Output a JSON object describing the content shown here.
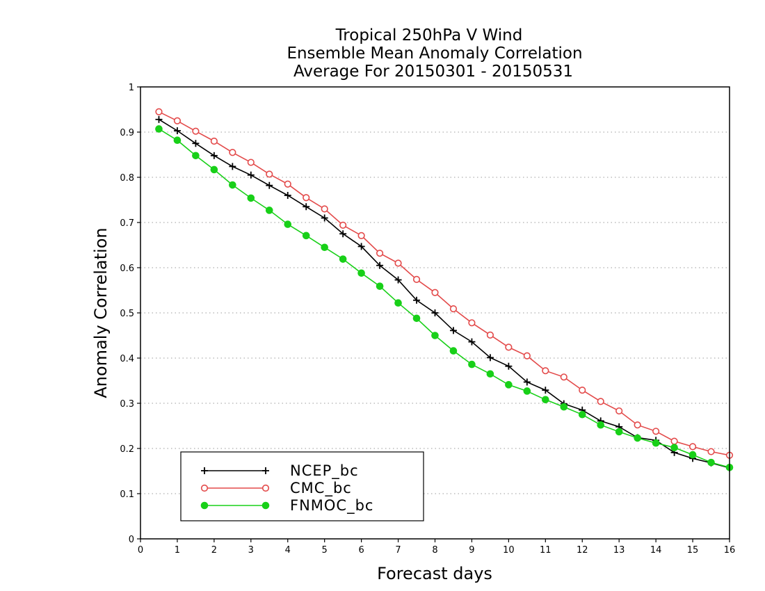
{
  "chart_data": {
    "type": "line",
    "title": [
      "Tropical 250hPa V Wind",
      "Ensemble Mean Anomaly Correlation",
      "Average For 20150301 - 20150531"
    ],
    "xlabel": "Forecast days",
    "ylabel": "Anomaly Correlation",
    "xlim": [
      0,
      16
    ],
    "ylim": [
      0,
      1
    ],
    "xticks": [
      0,
      1,
      2,
      3,
      4,
      5,
      6,
      7,
      8,
      9,
      10,
      11,
      12,
      13,
      14,
      15,
      16
    ],
    "yticks": [
      0,
      0.1,
      0.2,
      0.3,
      0.4,
      0.5,
      0.6,
      0.7,
      0.8,
      0.9,
      1
    ],
    "ytick_labels": [
      "0",
      "0.1",
      "0.2",
      "0.3",
      "0.4",
      "0.5",
      "0.6",
      "0.7",
      "0.8",
      "0.9",
      "1"
    ],
    "grid": "horizontal-dotted",
    "legend_position": "bottom-left",
    "x": [
      0.5,
      1,
      1.5,
      2,
      2.5,
      3,
      3.5,
      4,
      4.5,
      5,
      5.5,
      6,
      6.5,
      7,
      7.5,
      8,
      8.5,
      9,
      9.5,
      10,
      10.5,
      11,
      11.5,
      12,
      12.5,
      13,
      13.5,
      14,
      14.5,
      15,
      15.5,
      16
    ],
    "series": [
      {
        "name": "NCEP_bc",
        "color": "#000000",
        "marker": "plus",
        "values": [
          0.928,
          0.903,
          0.875,
          0.848,
          0.824,
          0.805,
          0.782,
          0.76,
          0.735,
          0.71,
          0.675,
          0.647,
          0.605,
          0.573,
          0.528,
          0.5,
          0.461,
          0.436,
          0.401,
          0.382,
          0.347,
          0.329,
          0.299,
          0.285,
          0.261,
          0.248,
          0.224,
          0.218,
          0.191,
          0.178,
          0.168,
          0.157
        ]
      },
      {
        "name": "CMC_bc",
        "color": "#e34a4a",
        "marker": "open-circle",
        "values": [
          0.945,
          0.925,
          0.902,
          0.88,
          0.855,
          0.833,
          0.807,
          0.785,
          0.755,
          0.73,
          0.694,
          0.671,
          0.632,
          0.61,
          0.574,
          0.545,
          0.509,
          0.478,
          0.451,
          0.424,
          0.405,
          0.372,
          0.358,
          0.329,
          0.304,
          0.283,
          0.252,
          0.238,
          0.216,
          0.204,
          0.193,
          0.185
        ]
      },
      {
        "name": "FNMOC_bc",
        "color": "#18d018",
        "marker": "filled-circle",
        "values": [
          0.907,
          0.882,
          0.848,
          0.817,
          0.783,
          0.754,
          0.727,
          0.696,
          0.671,
          0.645,
          0.619,
          0.588,
          0.559,
          0.522,
          0.488,
          0.45,
          0.416,
          0.386,
          0.365,
          0.341,
          0.327,
          0.308,
          0.292,
          0.275,
          0.252,
          0.237,
          0.223,
          0.212,
          0.202,
          0.186,
          0.169,
          0.158
        ]
      }
    ]
  }
}
